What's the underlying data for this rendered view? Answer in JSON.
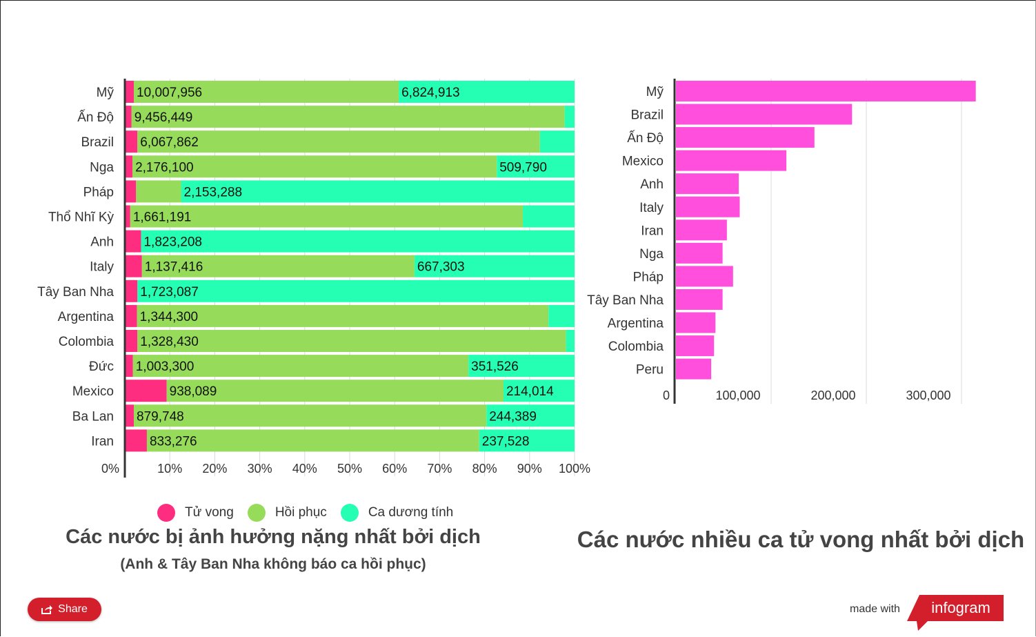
{
  "colors": {
    "death": "#ff2d7f",
    "recovered": "#96dc5a",
    "positive": "#25ffb4",
    "death_right": "#ff4fdc",
    "grid": "#d9d9d9",
    "axis": "#333333"
  },
  "legend": {
    "death": "Tử vong",
    "recovered": "Hồi phục",
    "positive": "Ca dương tính"
  },
  "left_title": "Các nước bị ảnh hưởng nặng nhất bởi dịch",
  "left_subtitle": "(Anh & Tây Ban Nha không báo ca hồi phục)",
  "right_title": "Các nước nhiều ca tử vong nhất bởi dịch",
  "share_label": "Share",
  "made_with": "made with",
  "brand": "infogram",
  "chart_data": [
    {
      "type": "bar",
      "orientation": "horizontal",
      "stacked": "percent",
      "categories": [
        "Mỹ",
        "Ấn Độ",
        "Brazil",
        "Nga",
        "Pháp",
        "Thổ Nhĩ Kỳ",
        "Anh",
        "Italy",
        "Tây Ban Nha",
        "Argentina",
        "Colombia",
        "Đức",
        "Mexico",
        "Ba Lan",
        "Iran"
      ],
      "series": [
        {
          "name": "Tử vong",
          "values": [
            2.0,
            1.5,
            2.8,
            1.7,
            2.5,
            1.2,
            3.6,
            3.8,
            2.8,
            2.7,
            2.8,
            1.8,
            9.3,
            2.0,
            4.9
          ]
        },
        {
          "name": "Hồi phục",
          "values": [
            58.9,
            96.3,
            89.5,
            81.0,
            10.0,
            87.3,
            0,
            60.6,
            0,
            91.5,
            95.3,
            74.6,
            74.9,
            78.4,
            73.9
          ]
        },
        {
          "name": "Ca dương tính",
          "values": [
            39.1,
            2.2,
            7.7,
            17.3,
            87.5,
            11.5,
            96.4,
            35.6,
            97.2,
            5.8,
            1.9,
            23.6,
            15.8,
            19.6,
            21.2
          ]
        }
      ],
      "data_labels": [
        [
          "10,007,956",
          "6,824,913"
        ],
        [
          "9,456,449",
          ""
        ],
        [
          "6,067,862",
          ""
        ],
        [
          "2,176,100",
          "509,790"
        ],
        [
          "",
          "2,153,288"
        ],
        [
          "1,661,191",
          ""
        ],
        [
          "",
          "1,823,208"
        ],
        [
          "1,137,416",
          "667,303"
        ],
        [
          "",
          "1,723,087"
        ],
        [
          "1,344,300",
          ""
        ],
        [
          "1,328,430",
          ""
        ],
        [
          "1,003,300",
          "351,526"
        ],
        [
          "938,089",
          "214,014"
        ],
        [
          "879,748",
          "244,389"
        ],
        [
          "833,276",
          "237,528"
        ]
      ],
      "x_ticks": [
        "0%",
        "10%",
        "20%",
        "30%",
        "40%",
        "50%",
        "60%",
        "70%",
        "80%",
        "90%",
        "100%"
      ],
      "xlim": [
        0,
        100
      ],
      "legend_position": "bottom"
    },
    {
      "type": "bar",
      "orientation": "horizontal",
      "categories": [
        "Mỹ",
        "Brazil",
        "Ấn Độ",
        "Mexico",
        "Anh",
        "Italy",
        "Iran",
        "Nga",
        "Pháp",
        "Tây Ban Nha",
        "Argentina",
        "Colombia",
        "Peru"
      ],
      "series": [
        {
          "name": "Tử vong",
          "values": [
            315000,
            185000,
            145500,
            116000,
            66000,
            67000,
            53500,
            49000,
            60000,
            49000,
            41500,
            40000,
            37000
          ]
        }
      ],
      "x_ticks": [
        "0",
        "100,000",
        "200,000",
        "300,000"
      ],
      "xlim": [
        0,
        315000
      ]
    }
  ]
}
